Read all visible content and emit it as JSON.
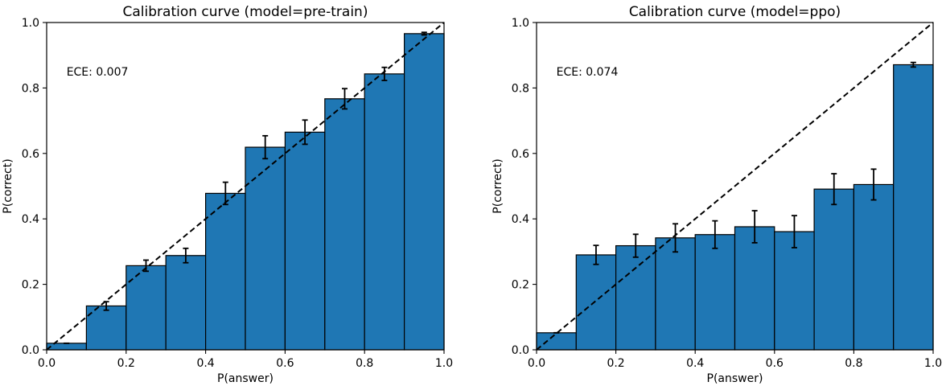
{
  "chart_data": [
    {
      "type": "bar",
      "title": "Calibration curve (model=pre-train)",
      "xlabel": "P(answer)",
      "ylabel": "P(correct)",
      "xlim": [
        0,
        1
      ],
      "ylim": [
        0,
        1
      ],
      "xticks": [
        "0.0",
        "0.2",
        "0.4",
        "0.6",
        "0.8",
        "1.0"
      ],
      "yticks": [
        "0.0",
        "0.2",
        "0.4",
        "0.6",
        "0.8",
        "1.0"
      ],
      "annotation": "ECE: 0.007",
      "bin_centers": [
        0.05,
        0.15,
        0.25,
        0.35,
        0.45,
        0.55,
        0.65,
        0.75,
        0.85,
        0.95
      ],
      "values": [
        0.02,
        0.134,
        0.257,
        0.288,
        0.478,
        0.619,
        0.665,
        0.767,
        0.843,
        0.966
      ],
      "errors": [
        0.0,
        0.013,
        0.017,
        0.022,
        0.034,
        0.035,
        0.037,
        0.031,
        0.02,
        0.004
      ],
      "bar_color": "#1f77b4",
      "reference_line": "dashed diagonal",
      "grid": false
    },
    {
      "type": "bar",
      "title": "Calibration curve (model=ppo)",
      "xlabel": "P(answer)",
      "ylabel": "P(correct)",
      "xlim": [
        0,
        1
      ],
      "ylim": [
        0,
        1
      ],
      "xticks": [
        "0.0",
        "0.2",
        "0.4",
        "0.6",
        "0.8",
        "1.0"
      ],
      "yticks": [
        "0.0",
        "0.2",
        "0.4",
        "0.6",
        "0.8",
        "1.0"
      ],
      "annotation": "ECE: 0.074",
      "bin_centers": [
        0.05,
        0.15,
        0.25,
        0.35,
        0.45,
        0.55,
        0.65,
        0.75,
        0.85,
        0.95
      ],
      "values": [
        0.052,
        0.29,
        0.318,
        0.342,
        0.352,
        0.376,
        0.361,
        0.491,
        0.505,
        0.871
      ],
      "errors": [
        0.0,
        0.029,
        0.035,
        0.043,
        0.042,
        0.049,
        0.049,
        0.047,
        0.047,
        0.007
      ],
      "bar_color": "#1f77b4",
      "reference_line": "dashed diagonal",
      "grid": false
    }
  ]
}
